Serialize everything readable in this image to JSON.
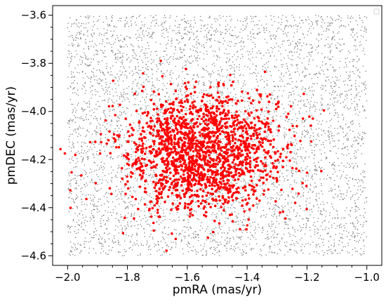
{
  "chart_data": {
    "type": "scatter",
    "title": "",
    "xlabel": "pmRA (mas/yr)",
    "ylabel": "pmDEC (mas/yr)",
    "xlim": [
      -2.05,
      -0.95
    ],
    "ylim": [
      -4.64,
      -3.56
    ],
    "xticks": [
      -2.0,
      -1.8,
      -1.6,
      -1.4,
      -1.2,
      -1.0
    ],
    "xtick_labels": [
      "−2.0",
      "−1.8",
      "−1.6",
      "−1.4",
      "−1.2",
      "−1.0"
    ],
    "yticks": [
      -3.6,
      -3.8,
      -4.0,
      -4.2,
      -4.4,
      -4.6
    ],
    "ytick_labels": [
      "−3.6",
      "−3.8",
      "−4.0",
      "−4.2",
      "−4.4",
      "−4.6"
    ],
    "grid": false,
    "legend": "top-right (empty)",
    "series": [
      {
        "color": "#808080",
        "marker_size": "small",
        "distribution": "uniform",
        "count": 5200,
        "x_range": [
          -2.0,
          -1.0
        ],
        "y_range": [
          -4.6,
          -3.6
        ]
      },
      {
        "color": "#ff0000",
        "marker_size": "medium",
        "distribution": "gaussian",
        "count": 1800,
        "center": [
          -1.55,
          -4.17
        ],
        "sigma": [
          0.13,
          0.12
        ]
      }
    ]
  }
}
